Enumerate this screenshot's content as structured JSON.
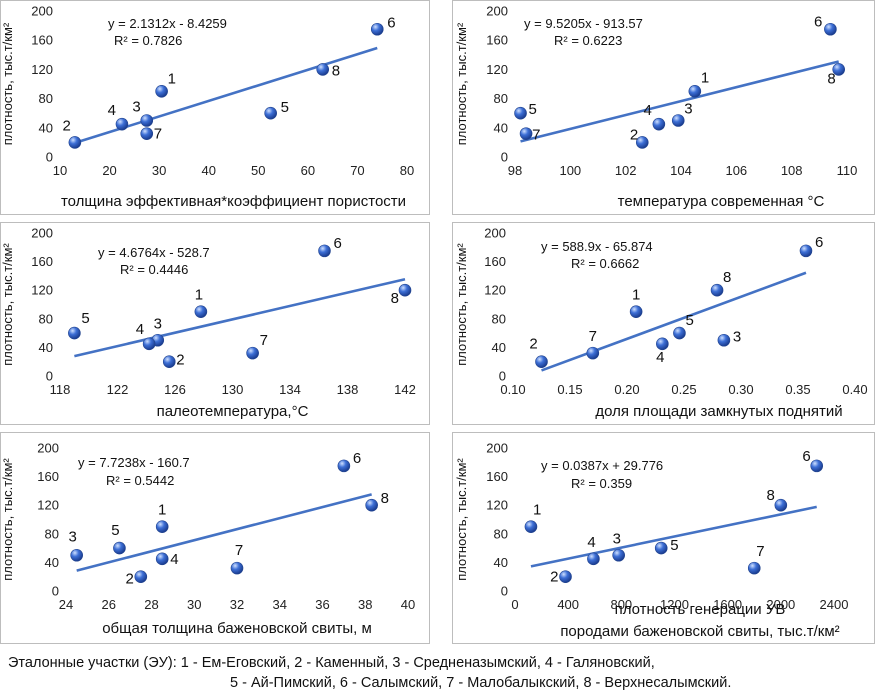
{
  "legend": {
    "line1": "Эталонные участки (ЭУ): 1 - Ем-Еговский, 2 - Каменный, 3 - Средненазымский, 4 - Галяновский,",
    "line2": "5 - Ай-Пимский, 6 - Салымский, 7 - Малобалыкский, 8 - Верхнесалымский."
  },
  "colors": {
    "trend": "#4472c4",
    "point": "#3d6fd6",
    "frame": "#bdbdbd"
  },
  "chart_data": [
    {
      "type": "scatter",
      "xlabel": "толщина эффективная*коэффициент пористости",
      "ylabel": "плотность, тыс.т/км²",
      "xlim": [
        10,
        80
      ],
      "ylim": [
        0,
        200
      ],
      "xticks": [
        10,
        20,
        30,
        40,
        50,
        60,
        70,
        80
      ],
      "yticks": [
        0,
        40,
        80,
        120,
        160,
        200
      ],
      "equation": "y = 2.1312x - 8.4259",
      "r2": "R² = 0.7826",
      "trend": {
        "slope": 2.1312,
        "intercept": -8.4259,
        "x": [
          13,
          74
        ]
      },
      "points": [
        {
          "id": "1",
          "x": 30.5,
          "y": 90
        },
        {
          "id": "2",
          "x": 13,
          "y": 20
        },
        {
          "id": "3",
          "x": 27.5,
          "y": 50
        },
        {
          "id": "4",
          "x": 22.5,
          "y": 45
        },
        {
          "id": "5",
          "x": 52.5,
          "y": 60
        },
        {
          "id": "6",
          "x": 74,
          "y": 175
        },
        {
          "id": "7",
          "x": 27.5,
          "y": 32
        },
        {
          "id": "8",
          "x": 63,
          "y": 120
        }
      ]
    },
    {
      "type": "scatter",
      "xlabel": "температура современная °C",
      "ylabel": "плотность, тыс.т/км²",
      "xlim": [
        98,
        110
      ],
      "ylim": [
        0,
        200
      ],
      "xticks": [
        98,
        100,
        102,
        104,
        106,
        108,
        110
      ],
      "yticks": [
        0,
        40,
        80,
        120,
        160,
        200
      ],
      "equation": "y = 9.5205x - 913.57",
      "r2": "R² = 0.6223",
      "trend": {
        "slope": 9.5205,
        "intercept": -913.57,
        "x": [
          98.2,
          109.7
        ]
      },
      "points": [
        {
          "id": "1",
          "x": 104.5,
          "y": 90
        },
        {
          "id": "2",
          "x": 102.6,
          "y": 20
        },
        {
          "id": "3",
          "x": 103.9,
          "y": 50
        },
        {
          "id": "4",
          "x": 103.2,
          "y": 45
        },
        {
          "id": "5",
          "x": 98.2,
          "y": 60
        },
        {
          "id": "6",
          "x": 109.4,
          "y": 175
        },
        {
          "id": "7",
          "x": 98.4,
          "y": 32
        },
        {
          "id": "8",
          "x": 109.7,
          "y": 120
        }
      ]
    },
    {
      "type": "scatter",
      "xlabel": "палеотемпература,°C",
      "ylabel": "плотность, тыс.т/км²",
      "xlim": [
        118,
        142
      ],
      "ylim": [
        0,
        200
      ],
      "xticks": [
        118,
        122,
        126,
        130,
        134,
        138,
        142
      ],
      "yticks": [
        0,
        40,
        80,
        120,
        160,
        200
      ],
      "equation": "y = 4.6764x - 528.7",
      "r2": "R² = 0.4446",
      "trend": {
        "slope": 4.6764,
        "intercept": -528.7,
        "x": [
          119,
          142
        ]
      },
      "points": [
        {
          "id": "1",
          "x": 127.8,
          "y": 90
        },
        {
          "id": "2",
          "x": 125.6,
          "y": 20
        },
        {
          "id": "3",
          "x": 124.8,
          "y": 50
        },
        {
          "id": "4",
          "x": 124.2,
          "y": 45
        },
        {
          "id": "5",
          "x": 119,
          "y": 60
        },
        {
          "id": "6",
          "x": 136.4,
          "y": 175
        },
        {
          "id": "7",
          "x": 131.4,
          "y": 32
        },
        {
          "id": "8",
          "x": 142,
          "y": 120
        }
      ]
    },
    {
      "type": "scatter",
      "xlabel": "доля площади замкнутых поднятий",
      "ylabel": "плотность, тыс.т/км²",
      "xlim": [
        0.1,
        0.4
      ],
      "ylim": [
        0,
        200
      ],
      "xticks": [
        0.1,
        0.15,
        0.2,
        0.25,
        0.3,
        0.35,
        0.4
      ],
      "xtick_labels": [
        "0.10",
        "0.15",
        "0.20",
        "0.25",
        "0.30",
        "0.35",
        "0.40"
      ],
      "yticks": [
        0,
        40,
        80,
        120,
        160,
        200
      ],
      "equation": "y = 588.9x - 65.874",
      "r2": "R² = 0.6662",
      "trend": {
        "slope": 588.9,
        "intercept": -65.874,
        "x": [
          0.125,
          0.357
        ]
      },
      "points": [
        {
          "id": "1",
          "x": 0.208,
          "y": 90
        },
        {
          "id": "2",
          "x": 0.125,
          "y": 20
        },
        {
          "id": "3",
          "x": 0.285,
          "y": 50
        },
        {
          "id": "4",
          "x": 0.231,
          "y": 45
        },
        {
          "id": "5",
          "x": 0.246,
          "y": 60
        },
        {
          "id": "6",
          "x": 0.357,
          "y": 175
        },
        {
          "id": "7",
          "x": 0.17,
          "y": 32
        },
        {
          "id": "8",
          "x": 0.279,
          "y": 120
        }
      ]
    },
    {
      "type": "scatter",
      "xlabel": "общая толщина баженовской свиты, м",
      "ylabel": "плотность, тыс.т/км²",
      "xlim": [
        24,
        40
      ],
      "ylim": [
        0,
        200
      ],
      "xticks": [
        24,
        26,
        28,
        30,
        32,
        34,
        36,
        38,
        40
      ],
      "yticks": [
        0,
        40,
        80,
        120,
        160,
        200
      ],
      "equation": "y = 7.7238x - 160.7",
      "r2": "R² = 0.5442",
      "trend": {
        "slope": 7.7238,
        "intercept": -160.7,
        "x": [
          24.5,
          38.3
        ]
      },
      "points": [
        {
          "id": "1",
          "x": 28.5,
          "y": 90
        },
        {
          "id": "2",
          "x": 27.5,
          "y": 20
        },
        {
          "id": "3",
          "x": 24.5,
          "y": 50
        },
        {
          "id": "4",
          "x": 28.5,
          "y": 45
        },
        {
          "id": "5",
          "x": 26.5,
          "y": 60
        },
        {
          "id": "6",
          "x": 37,
          "y": 175
        },
        {
          "id": "7",
          "x": 32,
          "y": 32
        },
        {
          "id": "8",
          "x": 38.3,
          "y": 120
        }
      ]
    },
    {
      "type": "scatter",
      "xlabel": "плотность генерации УВ",
      "xlabel2": "породами баженовской свиты, тыс.т/км²",
      "ylabel": "плотность, тыс.т/км²",
      "xlim": [
        0,
        2400
      ],
      "ylim": [
        0,
        200
      ],
      "xticks": [
        0,
        400,
        800,
        1200,
        1600,
        2000,
        2400
      ],
      "yticks": [
        0,
        40,
        80,
        120,
        160,
        200
      ],
      "equation": "y = 0.0387x + 29.776",
      "r2": "R² = 0.359",
      "trend": {
        "slope": 0.0387,
        "intercept": 29.776,
        "x": [
          120,
          2270
        ]
      },
      "points": [
        {
          "id": "1",
          "x": 120,
          "y": 90
        },
        {
          "id": "2",
          "x": 380,
          "y": 20
        },
        {
          "id": "3",
          "x": 780,
          "y": 50
        },
        {
          "id": "4",
          "x": 590,
          "y": 45
        },
        {
          "id": "5",
          "x": 1100,
          "y": 60
        },
        {
          "id": "6",
          "x": 2270,
          "y": 175
        },
        {
          "id": "7",
          "x": 1800,
          "y": 32
        },
        {
          "id": "8",
          "x": 2000,
          "y": 120
        }
      ]
    }
  ]
}
